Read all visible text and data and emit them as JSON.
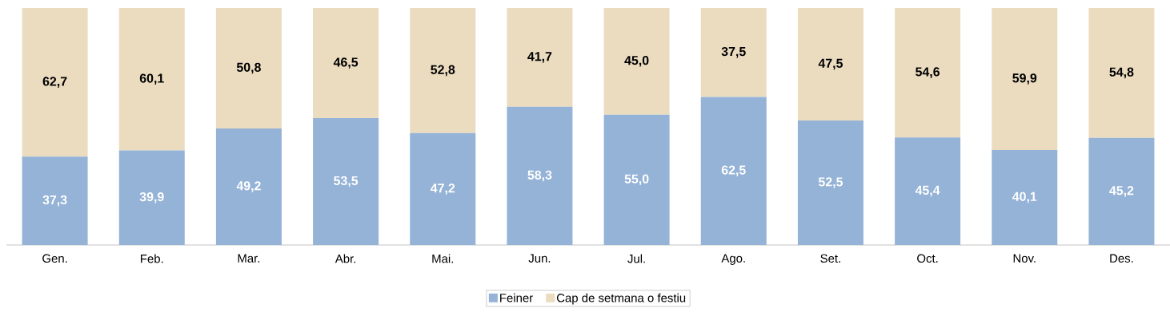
{
  "chart_data": {
    "type": "bar",
    "stacked": true,
    "categories": [
      "Gen.",
      "Feb.",
      "Mar.",
      "Abr.",
      "Mai.",
      "Jun.",
      "Jul.",
      "Ago.",
      "Set.",
      "Oct.",
      "Nov.",
      "Des."
    ],
    "series": [
      {
        "name": "Feiner",
        "color": "#95b3d7",
        "values": [
          37.3,
          39.9,
          49.2,
          53.5,
          47.2,
          58.3,
          55.0,
          62.5,
          52.5,
          45.4,
          40.1,
          45.2
        ],
        "value_labels": [
          "37,3",
          "39,9",
          "49,2",
          "53,5",
          "47,2",
          "58,3",
          "55,0",
          "62,5",
          "52,5",
          "45,4",
          "40,1",
          "45,2"
        ]
      },
      {
        "name": "Cap de setmana o festiu",
        "color": "#ebdcc0",
        "values": [
          62.7,
          60.1,
          50.8,
          46.5,
          52.8,
          41.7,
          45.0,
          37.5,
          47.5,
          54.6,
          59.9,
          54.8
        ],
        "value_labels": [
          "62,7",
          "60,1",
          "50,8",
          "46,5",
          "52,8",
          "41,7",
          "45,0",
          "37,5",
          "47,5",
          "54,6",
          "59,9",
          "54,8"
        ]
      }
    ],
    "legend": "bottom"
  }
}
